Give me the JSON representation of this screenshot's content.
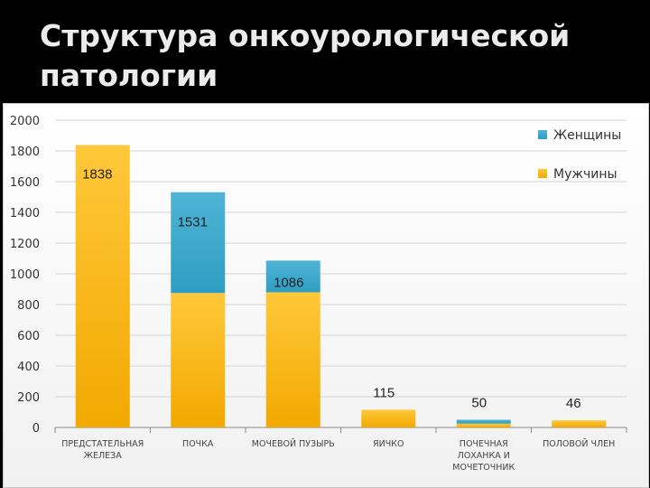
{
  "slide": {
    "title_line1": "Структура онкоурологической",
    "title_line2": "патологии"
  },
  "colors": {
    "background": "#000000",
    "men": "#f2a900",
    "women": "#2f9ec2"
  },
  "chart_data": {
    "type": "bar",
    "stacked": true,
    "title": "",
    "xlabel": "",
    "ylabel": "",
    "ylim": [
      0,
      2000
    ],
    "ytick_step": 200,
    "grid": true,
    "legend_position": "top-right",
    "categories": [
      [
        "ПРЕДСТАТЕЛЬНАЯ",
        "ЖЕЛЕЗА"
      ],
      [
        "ПОЧКА"
      ],
      [
        "МОЧЕВОЙ ПУЗЫРЬ"
      ],
      [
        "ЯИЧКО"
      ],
      [
        "ПОЧЕЧНАЯ",
        "ЛОХАНКА И",
        "МОЧЕТОЧНИК"
      ],
      [
        "ПОЛОВОЙ ЧЛЕН"
      ]
    ],
    "series": [
      {
        "name": "Мужчины",
        "color": "#f2a900",
        "values": [
          1838,
          875,
          880,
          115,
          25,
          46
        ]
      },
      {
        "name": "Женщины",
        "color": "#2f9ec2",
        "values": [
          0,
          656,
          206,
          0,
          25,
          0
        ]
      }
    ],
    "totals_labels": [
      "1838",
      "1531",
      "1086",
      "115",
      "50",
      "46"
    ],
    "legend": [
      "Женщины",
      "Мужчины"
    ]
  }
}
